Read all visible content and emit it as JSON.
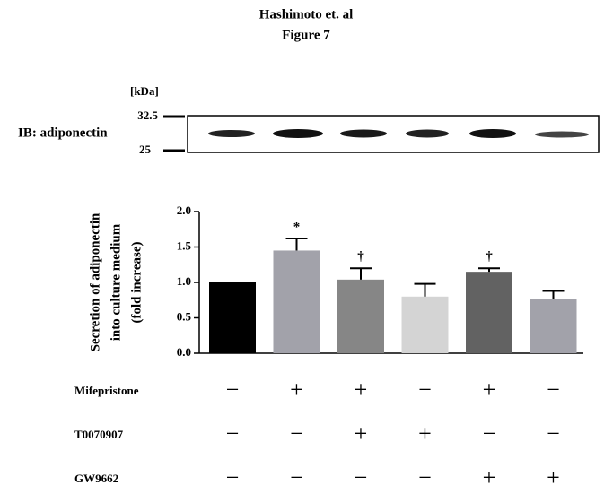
{
  "chart_data": {
    "type": "bar",
    "title": "Hashimoto et. al",
    "subtitle": "Figure 7",
    "blot": {
      "unit": "[kDa]",
      "markers": [
        "32.5",
        "25"
      ],
      "label": "IB: adiponectin"
    },
    "ylabel": [
      "Secretion of adiponectin",
      "into culture medium",
      "(fold increase)"
    ],
    "ylim": [
      0,
      2
    ],
    "yticks": [
      {
        "value": 0,
        "label": "0.0"
      },
      {
        "value": 0.5,
        "label": "0.5"
      },
      {
        "value": 1,
        "label": "1.0"
      },
      {
        "value": 1.5,
        "label": "1.5"
      },
      {
        "value": 2,
        "label": "2.0"
      }
    ],
    "values": [
      1.0,
      1.45,
      1.04,
      0.8,
      1.15,
      0.76
    ],
    "errors": [
      0,
      0.17,
      0.16,
      0.18,
      0.05,
      0.12
    ],
    "colors": [
      "#000000",
      "#a2a2aa",
      "#868686",
      "#d4d4d4",
      "#626262",
      "#a2a2aa"
    ],
    "significance": [
      null,
      "*",
      "†",
      null,
      "†",
      null
    ],
    "treatments": [
      {
        "name": "Mifepristone",
        "signs": [
          "−",
          "+",
          "+",
          "−",
          "+",
          "−"
        ]
      },
      {
        "name": "T0070907",
        "signs": [
          "−",
          "−",
          "+",
          "+",
          "−",
          "−"
        ]
      },
      {
        "name": "GW9662",
        "signs": [
          "−",
          "−",
          "−",
          "−",
          "+",
          "+"
        ]
      }
    ]
  }
}
